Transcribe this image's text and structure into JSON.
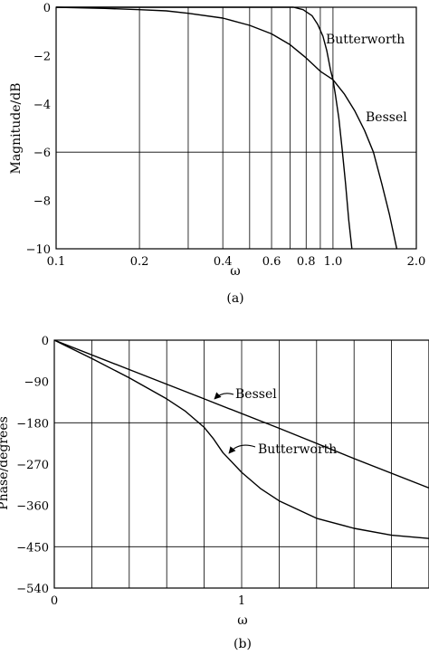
{
  "chart_data": [
    {
      "panel": "a",
      "type": "line",
      "caption": "(a)",
      "xlabel": "ω",
      "ylabel": "Magnitude/dB",
      "xscale": "log",
      "xlim": [
        0.1,
        2.0
      ],
      "ylim": [
        -10,
        0
      ],
      "grid": true,
      "xticks": [
        0.1,
        0.2,
        0.4,
        0.6,
        0.8,
        1.0,
        2.0
      ],
      "xtick_labels": [
        "0.1",
        "0.2",
        "0.4",
        "0.6",
        "0.8",
        "1.0",
        "2.0"
      ],
      "xgrid": [
        0.2,
        0.3,
        0.4,
        0.5,
        0.6,
        0.7,
        0.8,
        0.9,
        1.0
      ],
      "yticks": [
        0,
        -2,
        -4,
        -6,
        -8,
        -10
      ],
      "ytick_labels": [
        "0",
        "−2",
        "−4",
        "−6",
        "−8",
        "−10"
      ],
      "ygrid": [
        -6
      ],
      "series": [
        {
          "name": "Butterworth",
          "x": [
            0.1,
            0.72,
            0.78,
            0.84,
            0.88,
            0.92,
            0.95,
            0.98,
            1.0,
            1.02,
            1.05,
            1.08,
            1.11,
            1.14,
            1.17
          ],
          "y": [
            0,
            0,
            -0.1,
            -0.35,
            -0.7,
            -1.2,
            -1.8,
            -2.6,
            -3.0,
            -3.6,
            -4.6,
            -5.9,
            -7.3,
            -8.8,
            -10
          ]
        },
        {
          "name": "Bessel",
          "x": [
            0.1,
            0.15,
            0.2,
            0.25,
            0.3,
            0.4,
            0.5,
            0.6,
            0.7,
            0.8,
            0.9,
            1.0,
            1.1,
            1.2,
            1.3,
            1.4,
            1.5,
            1.6,
            1.7
          ],
          "y": [
            0,
            -0.05,
            -0.1,
            -0.15,
            -0.25,
            -0.45,
            -0.75,
            -1.1,
            -1.55,
            -2.1,
            -2.65,
            -3.0,
            -3.6,
            -4.3,
            -5.1,
            -6.0,
            -7.3,
            -8.6,
            -10
          ]
        }
      ],
      "annotations": [
        "Butterworth",
        "Bessel"
      ]
    },
    {
      "panel": "b",
      "type": "line",
      "caption": "(b)",
      "xlabel": "ω",
      "ylabel": "Phase/degrees",
      "xlim": [
        0,
        2
      ],
      "ylim": [
        -540,
        0
      ],
      "grid": true,
      "xticks": [
        0,
        1
      ],
      "xtick_labels": [
        "0",
        "1"
      ],
      "xgrid": [
        0.2,
        0.4,
        0.6,
        0.8,
        1.0,
        1.2,
        1.4,
        1.6,
        1.8
      ],
      "yticks": [
        0,
        -90,
        -180,
        -270,
        -360,
        -450,
        -540
      ],
      "ytick_labels": [
        "0",
        "−90",
        "−180",
        "−270",
        "−360",
        "−450",
        "−540"
      ],
      "ygrid": [
        -180,
        -450
      ],
      "series": [
        {
          "name": "Bessel",
          "x": [
            0,
            0.4,
            0.8,
            1.2,
            1.6,
            2.0
          ],
          "y": [
            0,
            -64,
            -128,
            -192,
            -258,
            -322
          ]
        },
        {
          "name": "Butterworth",
          "x": [
            0,
            0.2,
            0.4,
            0.6,
            0.7,
            0.8,
            0.85,
            0.9,
            1.0,
            1.1,
            1.2,
            1.4,
            1.6,
            1.8,
            2.0
          ],
          "y": [
            0,
            -40,
            -82,
            -128,
            -155,
            -190,
            -215,
            -245,
            -288,
            -323,
            -350,
            -388,
            -410,
            -425,
            -432
          ]
        }
      ],
      "annotations": [
        "Bessel",
        "Butterworth"
      ]
    }
  ]
}
